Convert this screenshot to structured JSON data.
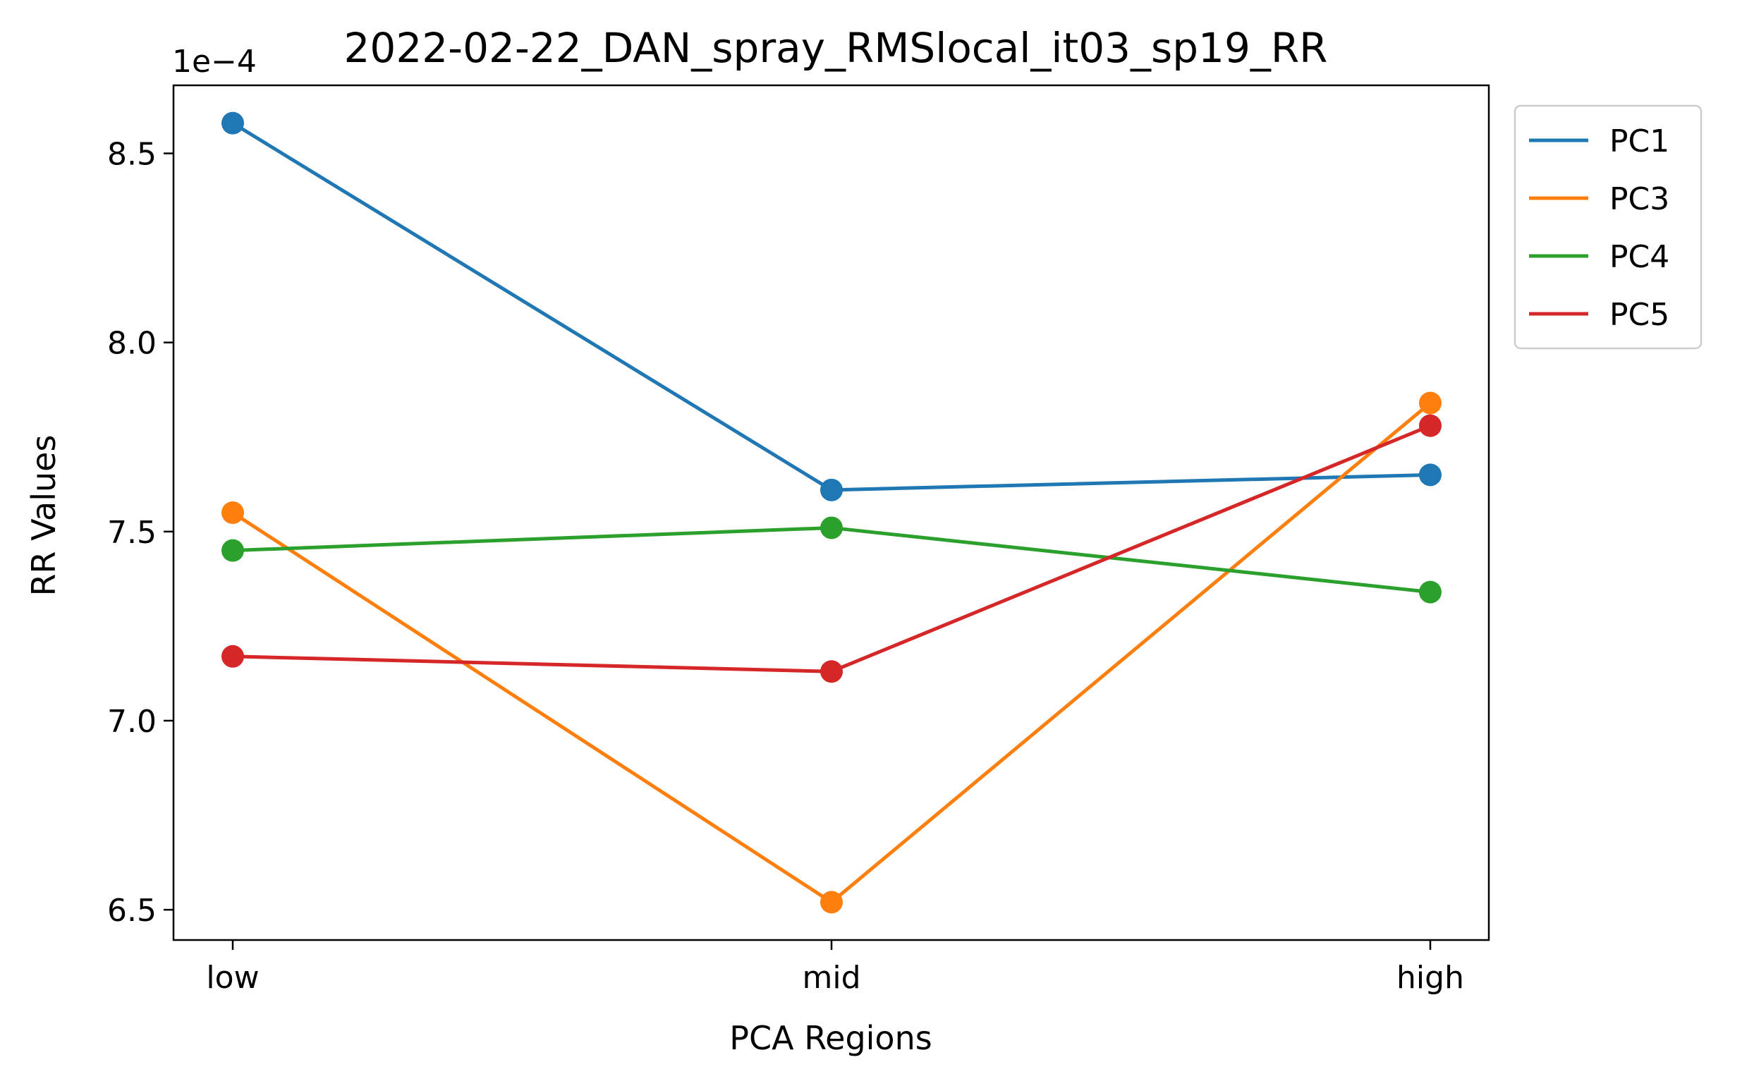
{
  "chart_data": {
    "type": "line",
    "title": "2022-02-22_DAN_spray_RMSlocal_it03_sp19_RR",
    "xlabel": "PCA Regions",
    "ylabel": "RR Values",
    "y_offset_label": "1e−4",
    "y_scale_factor": 0.0001,
    "categories": [
      "low",
      "mid",
      "high"
    ],
    "ylim": [
      6.42,
      8.68
    ],
    "yticks": [
      6.5,
      7.0,
      7.5,
      8.0,
      8.5
    ],
    "ytick_labels": [
      "6.5",
      "7.0",
      "7.5",
      "8.0",
      "8.5"
    ],
    "grid": false,
    "legend_position": "outside upper right",
    "series": [
      {
        "name": "PC1",
        "color": "#1f77b4",
        "values": [
          8.58,
          7.61,
          7.65
        ]
      },
      {
        "name": "PC3",
        "color": "#ff7f0e",
        "values": [
          7.55,
          6.52,
          7.84
        ]
      },
      {
        "name": "PC4",
        "color": "#2ca02c",
        "values": [
          7.45,
          7.51,
          7.34
        ]
      },
      {
        "name": "PC5",
        "color": "#d62728",
        "values": [
          7.17,
          7.13,
          7.78
        ]
      }
    ]
  }
}
